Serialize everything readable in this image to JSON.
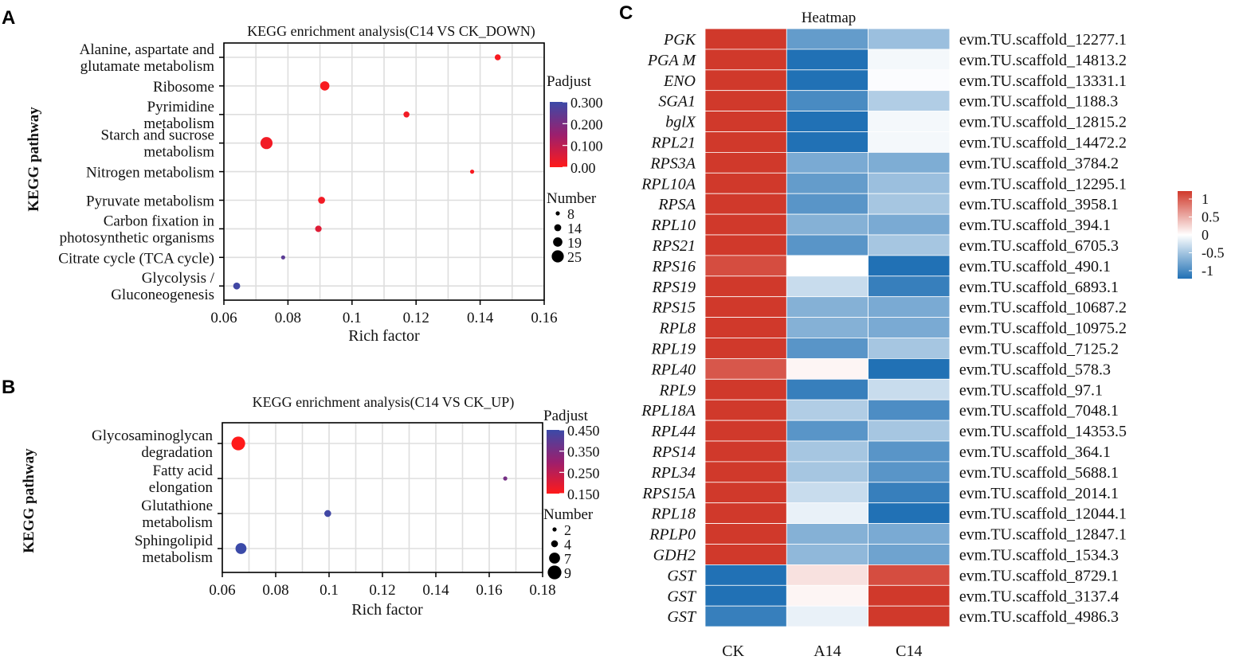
{
  "panels": {
    "a": "A",
    "b": "B",
    "c": "C"
  },
  "chart_data": [
    {
      "type": "scatter",
      "title": "KEGG enrichment analysis(C14 VS CK_DOWN)",
      "xlabel": "Rich factor",
      "ylabel": "KEGG pathway",
      "xlim": [
        0.06,
        0.16
      ],
      "xticks": [
        "0.06",
        "0.08",
        "0.1",
        "0.12",
        "0.14",
        "0.16"
      ],
      "categories": [
        {
          "lines": [
            "Alanine, aspartate and",
            "glutamate metabolism"
          ]
        },
        {
          "lines": [
            "Ribosome"
          ]
        },
        {
          "lines": [
            "Pyrimidine",
            "metabolism"
          ]
        },
        {
          "lines": [
            "Starch and sucrose",
            "metabolism"
          ]
        },
        {
          "lines": [
            "Nitrogen metabolism"
          ]
        },
        {
          "lines": [
            "Pyruvate metabolism"
          ]
        },
        {
          "lines": [
            "Carbon fixation in",
            "photosynthetic organisms"
          ]
        },
        {
          "lines": [
            "Citrate cycle (TCA cycle)"
          ]
        },
        {
          "lines": [
            "Glycolysis /",
            "Gluconeogenesis"
          ]
        }
      ],
      "points": [
        {
          "x": 0.1455,
          "count": 12,
          "padjust": 0.01
        },
        {
          "x": 0.0915,
          "count": 19,
          "padjust": 0.01
        },
        {
          "x": 0.117,
          "count": 12,
          "padjust": 0.02
        },
        {
          "x": 0.0733,
          "count": 25,
          "padjust": 0.02
        },
        {
          "x": 0.1375,
          "count": 8,
          "padjust": 0.01
        },
        {
          "x": 0.0905,
          "count": 14,
          "padjust": 0.02
        },
        {
          "x": 0.0895,
          "count": 13,
          "padjust": 0.05
        },
        {
          "x": 0.0785,
          "count": 8,
          "padjust": 0.25
        },
        {
          "x": 0.064,
          "count": 14,
          "padjust": 0.29
        }
      ],
      "color_legend": {
        "title": "Padjust",
        "min": 0.0,
        "max": 0.3,
        "ticks": [
          "0.300",
          "0.200",
          "0.100",
          "0.00"
        ],
        "low_color": "#ff1a1a",
        "high_color": "#3b4aa8"
      },
      "size_legend": {
        "title": "Number",
        "values": [
          8,
          14,
          19,
          25
        ],
        "labels": [
          "8",
          "14",
          "19",
          "25"
        ]
      }
    },
    {
      "type": "scatter",
      "title": "KEGG enrichment analysis(C14 VS CK_UP)",
      "xlabel": "Rich factor",
      "ylabel": "KEGG pathway",
      "xlim": [
        0.06,
        0.18
      ],
      "xticks": [
        "0.06",
        "0.08",
        "0.1",
        "0.12",
        "0.14",
        "0.16",
        "0.18"
      ],
      "categories": [
        {
          "lines": [
            "Glycosaminoglycan",
            "degradation"
          ]
        },
        {
          "lines": [
            "Fatty acid",
            "elongation"
          ]
        },
        {
          "lines": [
            "Glutathione",
            "metabolism"
          ]
        },
        {
          "lines": [
            "Sphingolipid",
            "metabolism"
          ]
        }
      ],
      "points": [
        {
          "x": 0.066,
          "count": 9,
          "padjust": 0.15
        },
        {
          "x": 0.166,
          "count": 2,
          "padjust": 0.36
        },
        {
          "x": 0.0995,
          "count": 4,
          "padjust": 0.44
        },
        {
          "x": 0.067,
          "count": 7,
          "padjust": 0.45
        }
      ],
      "color_legend": {
        "title": "Padjust",
        "min": 0.15,
        "max": 0.45,
        "ticks": [
          "0.450",
          "0.350",
          "0.250",
          "0.150"
        ],
        "low_color": "#ff1a1a",
        "high_color": "#3b4aa8"
      },
      "size_legend": {
        "title": "Number",
        "values": [
          2,
          4,
          7,
          9
        ],
        "labels": [
          "2",
          "4",
          "7",
          "9"
        ]
      }
    },
    {
      "type": "heatmap",
      "title": "Heatmap",
      "columns": [
        "CK",
        "A14",
        "C14"
      ],
      "genes": [
        "PGK",
        "PGA M",
        "ENO",
        "SGA1",
        "bglX",
        "RPL21",
        "RPS3A",
        "RPL10A",
        "RPSA",
        "RPL10",
        "RPS21",
        "RPS16",
        "RPS19",
        "RPS15",
        "RPL8",
        "RPL19",
        "RPL40",
        "RPL9",
        "RPL18A",
        "RPL44",
        "RPS14",
        "RPL34",
        "RPS15A",
        "RPL18",
        "RPLP0",
        "GDH2",
        "GST",
        "GST",
        "GST"
      ],
      "ids": [
        "evm.TU.scaffold_12277.1",
        "evm.TU.scaffold_14813.2",
        "evm.TU.scaffold_13331.1",
        "evm.TU.scaffold_1188.3",
        "evm.TU.scaffold_12815.2",
        "evm.TU.scaffold_14472.2",
        "evm.TU.scaffold_3784.2",
        "evm.TU.scaffold_12295.1",
        "evm.TU.scaffold_3958.1",
        "evm.TU.scaffold_394.1",
        "evm.TU.scaffold_6705.3",
        "evm.TU.scaffold_490.1",
        "evm.TU.scaffold_6893.1",
        "evm.TU.scaffold_10687.2",
        "evm.TU.scaffold_10975.2",
        "evm.TU.scaffold_7125.2",
        "evm.TU.scaffold_578.3",
        "evm.TU.scaffold_97.1",
        "evm.TU.scaffold_7048.1",
        "evm.TU.scaffold_14353.5",
        "evm.TU.scaffold_364.1",
        "evm.TU.scaffold_5688.1",
        "evm.TU.scaffold_2014.1",
        "evm.TU.scaffold_12044.1",
        "evm.TU.scaffold_12847.1",
        "evm.TU.scaffold_1534.3",
        "evm.TU.scaffold_8729.1",
        "evm.TU.scaffold_3137.4",
        "evm.TU.scaffold_4986.3"
      ],
      "values": [
        [
          1.13,
          -0.7,
          -0.45
        ],
        [
          1.06,
          -1.06,
          -0.05
        ],
        [
          1.04,
          -1.1,
          -0.02
        ],
        [
          1.12,
          -0.82,
          -0.35
        ],
        [
          1.1,
          -1.07,
          -0.05
        ],
        [
          1.1,
          -1.05,
          -0.05
        ],
        [
          1.15,
          -0.6,
          -0.58
        ],
        [
          1.15,
          -0.7,
          -0.45
        ],
        [
          1.15,
          -0.75,
          -0.4
        ],
        [
          1.15,
          -0.55,
          -0.6
        ],
        [
          1.15,
          -0.75,
          -0.4
        ],
        [
          0.9,
          0.0,
          -1.0
        ],
        [
          1.15,
          -0.25,
          -0.9
        ],
        [
          1.15,
          -0.55,
          -0.6
        ],
        [
          1.15,
          -0.55,
          -0.6
        ],
        [
          1.15,
          -0.75,
          -0.4
        ],
        [
          0.85,
          0.05,
          -1.0
        ],
        [
          1.15,
          -0.9,
          -0.25
        ],
        [
          1.15,
          -0.35,
          -0.8
        ],
        [
          1.15,
          -0.75,
          -0.4
        ],
        [
          1.15,
          -0.4,
          -0.75
        ],
        [
          1.15,
          -0.4,
          -0.75
        ],
        [
          1.15,
          -0.25,
          -0.9
        ],
        [
          1.1,
          -0.1,
          -1.0
        ],
        [
          1.15,
          -0.55,
          -0.6
        ],
        [
          1.15,
          -0.5,
          -0.65
        ],
        [
          -1.05,
          0.15,
          0.9
        ],
        [
          -1.1,
          0.05,
          1.05
        ],
        [
          -0.9,
          -0.1,
          1.0
        ]
      ],
      "scale_ticks": [
        "1",
        "0.5",
        "0",
        "-0.5",
        "-1"
      ],
      "scale_values": [
        1,
        0.5,
        0,
        -0.5,
        -1
      ],
      "colors": {
        "high": "#d0392b",
        "mid": "#ffffff",
        "low": "#2171b5"
      }
    }
  ]
}
